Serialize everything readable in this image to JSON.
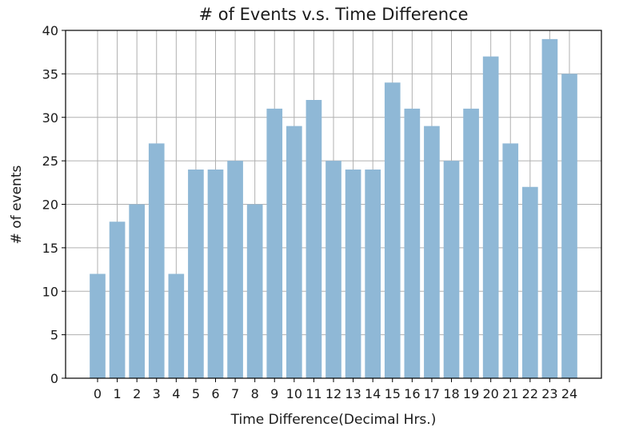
{
  "chart_data": {
    "type": "bar",
    "title": "# of Events v.s. Time Difference",
    "xlabel": "Time Difference(Decimal Hrs.)",
    "ylabel": "# of events",
    "categories": [
      "0",
      "1",
      "2",
      "3",
      "4",
      "5",
      "6",
      "7",
      "8",
      "9",
      "10",
      "11",
      "12",
      "13",
      "14",
      "15",
      "16",
      "17",
      "18",
      "19",
      "20",
      "21",
      "22",
      "23",
      "24"
    ],
    "values": [
      12,
      18,
      20,
      27,
      12,
      24,
      24,
      25,
      20,
      31,
      29,
      32,
      25,
      24,
      24,
      34,
      31,
      29,
      25,
      31,
      37,
      27,
      22,
      39,
      35
    ],
    "ylim": [
      0,
      40
    ],
    "yticks": [
      "0",
      "5",
      "10",
      "15",
      "20",
      "25",
      "30",
      "35",
      "40"
    ],
    "grid": true,
    "bar_color": "#8fb8d6"
  }
}
